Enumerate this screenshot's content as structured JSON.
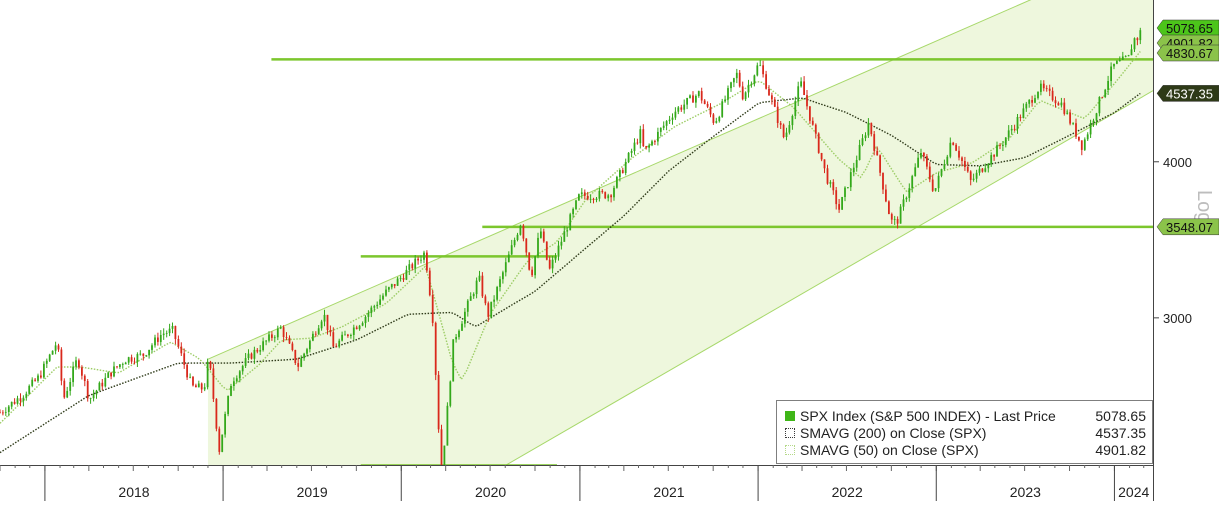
{
  "chart_data": {
    "type": "line",
    "y_scale": "log",
    "ylim": [
      2300,
      5350
    ],
    "y_ticks": [
      3000,
      4000
    ],
    "y_tick_labels": [
      "3000",
      "4000"
    ],
    "y_axis_label": "Log",
    "x_labels": [
      "2018",
      "2019",
      "2020",
      "2021",
      "2022",
      "2023",
      "2024"
    ],
    "series": [
      {
        "name": "SPX Index (S&P 500 INDEX) - Last Price",
        "last_value": "5078.65",
        "points": [
          [
            "2017-10-01",
            2520
          ],
          [
            "2017-11-15",
            2600
          ],
          [
            "2017-12-20",
            2690
          ],
          [
            "2018-01-26",
            2872
          ],
          [
            "2018-02-08",
            2581
          ],
          [
            "2018-03-09",
            2786
          ],
          [
            "2018-04-02",
            2582
          ],
          [
            "2018-05-15",
            2710
          ],
          [
            "2018-06-15",
            2780
          ],
          [
            "2018-07-20",
            2800
          ],
          [
            "2018-08-29",
            2914
          ],
          [
            "2018-09-20",
            2930
          ],
          [
            "2018-10-29",
            2641
          ],
          [
            "2018-11-23",
            2633
          ],
          [
            "2018-12-03",
            2790
          ],
          [
            "2018-12-24",
            2351
          ],
          [
            "2019-01-18",
            2670
          ],
          [
            "2019-02-25",
            2796
          ],
          [
            "2019-04-30",
            2945
          ],
          [
            "2019-06-03",
            2744
          ],
          [
            "2019-07-26",
            3025
          ],
          [
            "2019-08-15",
            2840
          ],
          [
            "2019-10-15",
            2995
          ],
          [
            "2019-11-29",
            3140
          ],
          [
            "2019-12-31",
            3230
          ],
          [
            "2020-02-19",
            3386
          ],
          [
            "2020-03-05",
            3023
          ],
          [
            "2020-03-23",
            2237
          ],
          [
            "2020-04-17",
            2875
          ],
          [
            "2020-06-08",
            3232
          ],
          [
            "2020-06-26",
            3009
          ],
          [
            "2020-09-02",
            3580
          ],
          [
            "2020-09-23",
            3237
          ],
          [
            "2020-10-12",
            3534
          ],
          [
            "2020-10-30",
            3270
          ],
          [
            "2020-12-31",
            3756
          ],
          [
            "2021-03-04",
            3768
          ],
          [
            "2021-05-07",
            4232
          ],
          [
            "2021-05-12",
            4063
          ],
          [
            "2021-07-12",
            4384
          ],
          [
            "2021-09-02",
            4537
          ],
          [
            "2021-10-04",
            4300
          ],
          [
            "2021-11-18",
            4704
          ],
          [
            "2021-12-01",
            4513
          ],
          [
            "2022-01-03",
            4796
          ],
          [
            "2022-02-24",
            4170
          ],
          [
            "2022-03-29",
            4631
          ],
          [
            "2022-05-20",
            3901
          ],
          [
            "2022-06-16",
            3666
          ],
          [
            "2022-08-16",
            4305
          ],
          [
            "2022-09-30",
            3585
          ],
          [
            "2022-10-12",
            3577
          ],
          [
            "2022-12-01",
            4076
          ],
          [
            "2022-12-28",
            3783
          ],
          [
            "2023-02-02",
            4179
          ],
          [
            "2023-03-13",
            3855
          ],
          [
            "2023-05-15",
            4136
          ],
          [
            "2023-07-31",
            4589
          ],
          [
            "2023-09-15",
            4450
          ],
          [
            "2023-10-27",
            4117
          ],
          [
            "2023-12-29",
            4770
          ],
          [
            "2024-01-31",
            4846
          ],
          [
            "2024-02-09",
            5026
          ],
          [
            "2024-02-14",
            5000
          ],
          [
            "2024-02-23",
            5078.65
          ]
        ]
      },
      {
        "name": "SMAVG (200) on Close (SPX)",
        "last_value": "4537.35",
        "points": [
          [
            "2017-10-01",
            2340
          ],
          [
            "2018-04-01",
            2600
          ],
          [
            "2018-10-01",
            2760
          ],
          [
            "2019-01-15",
            2760
          ],
          [
            "2019-06-01",
            2780
          ],
          [
            "2019-10-01",
            2880
          ],
          [
            "2020-01-15",
            3020
          ],
          [
            "2020-04-15",
            3030
          ],
          [
            "2020-06-01",
            2950
          ],
          [
            "2020-08-01",
            3050
          ],
          [
            "2020-10-01",
            3150
          ],
          [
            "2021-01-01",
            3380
          ],
          [
            "2021-04-01",
            3620
          ],
          [
            "2021-07-01",
            3930
          ],
          [
            "2021-10-01",
            4190
          ],
          [
            "2022-01-03",
            4460
          ],
          [
            "2022-04-01",
            4500
          ],
          [
            "2022-07-01",
            4380
          ],
          [
            "2022-10-01",
            4200
          ],
          [
            "2023-01-01",
            3980
          ],
          [
            "2023-04-01",
            3970
          ],
          [
            "2023-07-01",
            4030
          ],
          [
            "2023-10-01",
            4200
          ],
          [
            "2024-01-01",
            4380
          ],
          [
            "2024-02-23",
            4537.35
          ]
        ]
      },
      {
        "name": "SMAVG (50) on Close (SPX)",
        "last_value": "4901.82",
        "points": [
          [
            "2017-10-01",
            2470
          ],
          [
            "2018-01-26",
            2740
          ],
          [
            "2018-03-15",
            2740
          ],
          [
            "2018-06-01",
            2710
          ],
          [
            "2018-09-15",
            2870
          ],
          [
            "2018-11-15",
            2780
          ],
          [
            "2019-01-08",
            2620
          ],
          [
            "2019-03-15",
            2750
          ],
          [
            "2019-05-01",
            2880
          ],
          [
            "2019-07-01",
            2890
          ],
          [
            "2019-09-01",
            2950
          ],
          [
            "2019-12-01",
            3080
          ],
          [
            "2020-02-20",
            3300
          ],
          [
            "2020-04-15",
            2760
          ],
          [
            "2020-05-05",
            2670
          ],
          [
            "2020-07-01",
            3020
          ],
          [
            "2020-09-15",
            3330
          ],
          [
            "2020-11-15",
            3450
          ],
          [
            "2021-01-15",
            3740
          ],
          [
            "2021-04-15",
            4020
          ],
          [
            "2021-07-15",
            4270
          ],
          [
            "2021-10-15",
            4450
          ],
          [
            "2022-01-03",
            4650
          ],
          [
            "2022-03-15",
            4420
          ],
          [
            "2022-06-15",
            4020
          ],
          [
            "2022-08-01",
            3880
          ],
          [
            "2022-09-01",
            4120
          ],
          [
            "2022-11-01",
            3780
          ],
          [
            "2023-01-01",
            3920
          ],
          [
            "2023-03-15",
            3990
          ],
          [
            "2023-06-01",
            4180
          ],
          [
            "2023-08-01",
            4480
          ],
          [
            "2023-11-01",
            4330
          ],
          [
            "2024-01-01",
            4620
          ],
          [
            "2024-02-23",
            4901.82
          ]
        ]
      }
    ],
    "horizontal_lines": [
      {
        "value": 4830.67,
        "label": "4830.67",
        "from": "2019-04-10",
        "to": "2024-03-20"
      },
      {
        "value": 3548.07,
        "label": "3548.07",
        "from": "2020-06-15",
        "to": "2024-03-20"
      },
      {
        "value": 3360,
        "label": "",
        "from": "2019-10-10",
        "to": "2020-11-15"
      },
      {
        "value": 2285,
        "label": "",
        "from": "2019-10-10",
        "to": "2020-11-15"
      }
    ],
    "channel": {
      "upper": [
        [
          "2018-12-01",
          2780
        ],
        [
          "2024-03-20",
          5950
        ]
      ],
      "lower": [
        [
          "2020-01-15",
          2060
        ],
        [
          "2024-03-20",
          4560
        ]
      ],
      "shade_start": "2018-12-01"
    },
    "price_tags": [
      {
        "value": 5078.65,
        "label": "5078.65",
        "color": "#4cc51a"
      },
      {
        "value": 4901.82,
        "label": "4901.82",
        "color": "#8bc34a"
      },
      {
        "value": 4830.67,
        "label": "4830.67",
        "color": "#8bc34a"
      },
      {
        "value": 4537.35,
        "label": "4537.35",
        "color": "#2e3a17"
      },
      {
        "value": 3548.07,
        "label": "3548.07",
        "color": "#8bc34a"
      }
    ],
    "legend": {
      "placement": "bottom-right",
      "rows": [
        {
          "label": "SPX Index (S&P 500 INDEX) - Last Price",
          "value": "5078.65",
          "color": "#3fb618"
        },
        {
          "label": "SMAVG (200)  on Close (SPX)",
          "value": "4537.35",
          "color": "#3a3a3a"
        },
        {
          "label": "SMAVG (50)  on Close (SPX)",
          "value": "4901.82",
          "color": "#b5d98a"
        }
      ]
    },
    "colors": {
      "up_candle": "#33a81a",
      "down_candle": "#d9281c",
      "channel_fill": "#eef7dd",
      "channel_line": "#a7d86a",
      "hline": "#7cc62d",
      "sma200": "#2f3b1a",
      "sma50": "#9ccc65"
    },
    "grid": false
  }
}
